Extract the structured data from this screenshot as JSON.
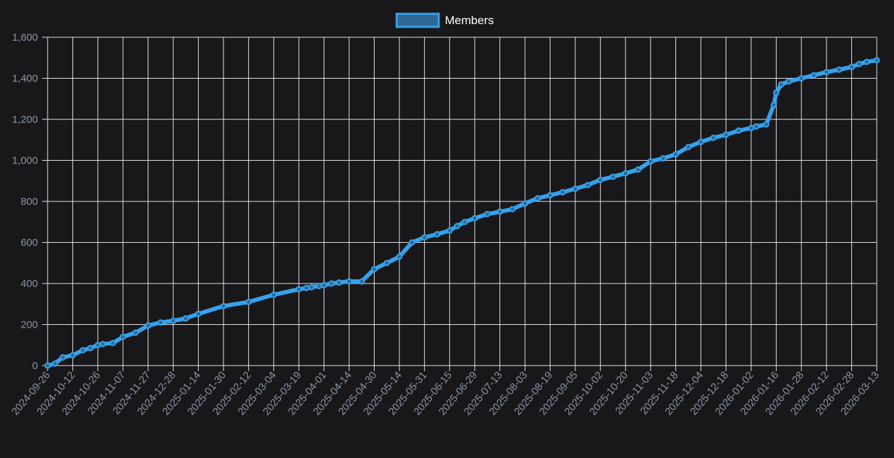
{
  "chart_data": {
    "type": "line",
    "legend": {
      "position": "top-center"
    },
    "grid": true,
    "colors": {
      "background": "#18181b",
      "grid": "#e6e6e6",
      "line": "#36a2eb",
      "legend_fill": "#2d6a96",
      "legend_stroke": "#36a2eb",
      "tick_text": "#8b96a8",
      "legend_text": "#ffffff"
    },
    "ylim": [
      0,
      1600
    ],
    "y_ticks": [
      "0",
      "200",
      "400",
      "600",
      "800",
      "1,000",
      "1,200",
      "1,400",
      "1,600"
    ],
    "x_ticks": [
      "2024-09-26",
      "2024-10-12",
      "2024-10-26",
      "2024-11-07",
      "2024-11-27",
      "2024-12-28",
      "2025-01-14",
      "2025-01-30",
      "2025-02-12",
      "2025-03-04",
      "2025-03-19",
      "2025-04-01",
      "2025-04-14",
      "2025-04-30",
      "2025-05-14",
      "2025-05-31",
      "2025-06-15",
      "2025-06-29",
      "2025-07-13",
      "2025-08-03",
      "2025-08-19",
      "2025-09-05",
      "2025-10-02",
      "2025-10-20",
      "2025-11-03",
      "2025-11-18",
      "2025-12-04",
      "2025-12-18",
      "2026-01-02",
      "2026-01-16",
      "2026-01-28",
      "2026-02-12",
      "2026-02-28",
      "2026-03-13"
    ],
    "series": [
      {
        "name": "Members",
        "x": [
          0,
          0.3,
          0.6,
          1,
          1.4,
          1.7,
          2,
          2.2,
          2.6,
          3,
          3.5,
          4,
          4.5,
          5,
          5.5,
          6,
          7,
          8,
          9,
          10,
          10.3,
          10.5,
          10.8,
          11,
          11.3,
          11.6,
          12,
          12.5,
          13,
          13.5,
          14,
          14.5,
          15,
          15.5,
          16,
          16.3,
          16.6,
          17,
          17.5,
          18,
          18.5,
          19,
          19.5,
          20,
          20.5,
          21,
          21.5,
          22,
          22.5,
          23,
          23.5,
          24,
          24.5,
          25,
          25.5,
          26,
          26.5,
          27,
          27.5,
          28,
          28.2,
          28.6,
          28.9,
          29,
          29.2,
          29.5,
          30,
          30.5,
          31,
          31.5,
          32,
          32.3,
          32.6,
          33
        ],
        "y": [
          0,
          10,
          40,
          50,
          75,
          85,
          100,
          105,
          110,
          140,
          160,
          195,
          210,
          218,
          230,
          252,
          290,
          310,
          345,
          372,
          378,
          382,
          388,
          392,
          400,
          405,
          410,
          410,
          470,
          500,
          530,
          600,
          625,
          640,
          658,
          680,
          700,
          718,
          738,
          750,
          762,
          790,
          815,
          830,
          845,
          862,
          880,
          905,
          920,
          937,
          955,
          995,
          1010,
          1030,
          1065,
          1090,
          1110,
          1125,
          1145,
          1158,
          1165,
          1175,
          1270,
          1330,
          1370,
          1385,
          1400,
          1415,
          1430,
          1442,
          1455,
          1470,
          1480,
          1488
        ],
        "y_note": "x values are positions along the category axis (index of x_ticks)"
      }
    ]
  }
}
